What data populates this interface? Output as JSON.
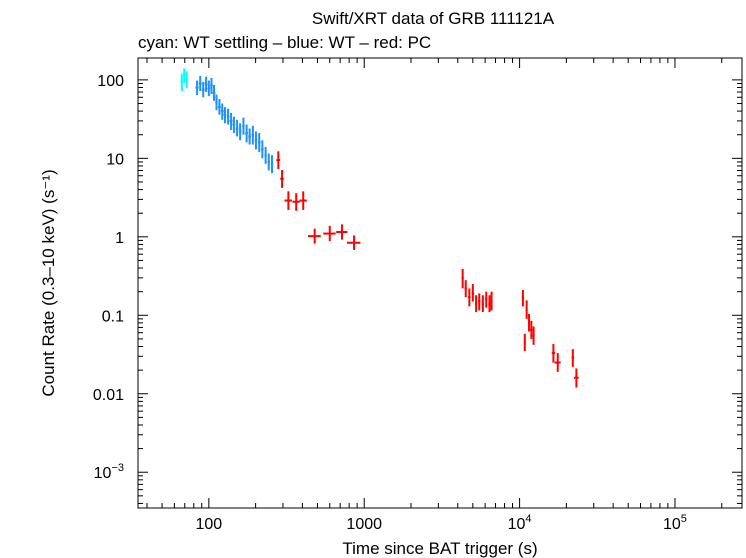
{
  "chart_data": {
    "type": "scatter",
    "title": "Swift/XRT data of GRB 111121A",
    "subtitle": "cyan: WT settling – blue: WT – red: PC",
    "xlabel": "Time since BAT trigger (s)",
    "ylabel": "Count Rate (0.3–10 keV) (s⁻¹)",
    "xscale": "log",
    "yscale": "log",
    "xlim": [
      35,
      270000
    ],
    "ylim": [
      0.00035,
      190
    ],
    "x_ticks": [
      {
        "value": 100,
        "label": "100"
      },
      {
        "value": 1000,
        "label": "1000"
      },
      {
        "value": 10000,
        "base": "10",
        "exp": "4"
      },
      {
        "value": 100000,
        "base": "10",
        "exp": "5"
      }
    ],
    "y_ticks": [
      {
        "value": 100,
        "label": "100"
      },
      {
        "value": 10,
        "label": "10"
      },
      {
        "value": 1,
        "label": "1"
      },
      {
        "value": 0.1,
        "label": "0.1"
      },
      {
        "value": 0.01,
        "label": "0.01"
      },
      {
        "value": 0.001,
        "base": "10",
        "exp": "−3"
      }
    ],
    "colors": {
      "wt_settling": "#00ffff",
      "wt": "#1e90ff",
      "pc": "#ff0000"
    },
    "series": [
      {
        "name": "WT settling",
        "color": "#00ffff",
        "points": [
          {
            "x": 67,
            "y": 95,
            "xerr": 1.2,
            "ylo": 72,
            "yhi": 120
          },
          {
            "x": 69.5,
            "y": 115,
            "xerr": 1.2,
            "ylo": 90,
            "yhi": 140
          },
          {
            "x": 72,
            "y": 100,
            "xerr": 1.2,
            "ylo": 78,
            "yhi": 128
          }
        ]
      },
      {
        "name": "WT",
        "color": "#1e90ff",
        "points": [
          {
            "x": 84,
            "y": 80,
            "xerr": 2,
            "ylo": 64,
            "yhi": 98
          },
          {
            "x": 88,
            "y": 90,
            "xerr": 2,
            "ylo": 72,
            "yhi": 112
          },
          {
            "x": 92,
            "y": 75,
            "xerr": 2,
            "ylo": 60,
            "yhi": 94
          },
          {
            "x": 96,
            "y": 88,
            "xerr": 2,
            "ylo": 70,
            "yhi": 110
          },
          {
            "x": 100,
            "y": 78,
            "xerr": 2,
            "ylo": 62,
            "yhi": 98
          },
          {
            "x": 104,
            "y": 85,
            "xerr": 2,
            "ylo": 66,
            "yhi": 106
          },
          {
            "x": 108,
            "y": 68,
            "xerr": 2,
            "ylo": 54,
            "yhi": 86
          },
          {
            "x": 112,
            "y": 52,
            "xerr": 2,
            "ylo": 41,
            "yhi": 65
          },
          {
            "x": 117,
            "y": 45,
            "xerr": 2.5,
            "ylo": 36,
            "yhi": 57
          },
          {
            "x": 122,
            "y": 40,
            "xerr": 2.5,
            "ylo": 31,
            "yhi": 50
          },
          {
            "x": 127,
            "y": 36,
            "xerr": 2.5,
            "ylo": 28,
            "yhi": 45
          },
          {
            "x": 133,
            "y": 34,
            "xerr": 2.5,
            "ylo": 27,
            "yhi": 43
          },
          {
            "x": 139,
            "y": 30,
            "xerr": 3,
            "ylo": 23,
            "yhi": 38
          },
          {
            "x": 145,
            "y": 27,
            "xerr": 3,
            "ylo": 21,
            "yhi": 34
          },
          {
            "x": 152,
            "y": 24,
            "xerr": 3,
            "ylo": 19,
            "yhi": 31
          },
          {
            "x": 159,
            "y": 22,
            "xerr": 3,
            "ylo": 17,
            "yhi": 28
          },
          {
            "x": 167,
            "y": 26,
            "xerr": 3,
            "ylo": 20,
            "yhi": 33
          },
          {
            "x": 175,
            "y": 21,
            "xerr": 3.5,
            "ylo": 16,
            "yhi": 27
          },
          {
            "x": 183,
            "y": 19,
            "xerr": 3.5,
            "ylo": 15,
            "yhi": 24
          },
          {
            "x": 192,
            "y": 20,
            "xerr": 3.5,
            "ylo": 15,
            "yhi": 26
          },
          {
            "x": 201,
            "y": 17,
            "xerr": 3.5,
            "ylo": 13,
            "yhi": 22
          },
          {
            "x": 211,
            "y": 16,
            "xerr": 4,
            "ylo": 12,
            "yhi": 21
          },
          {
            "x": 221,
            "y": 13,
            "xerr": 4,
            "ylo": 10,
            "yhi": 17
          },
          {
            "x": 232,
            "y": 11,
            "xerr": 4,
            "ylo": 8.5,
            "yhi": 14
          },
          {
            "x": 243,
            "y": 9,
            "xerr": 4,
            "ylo": 7,
            "yhi": 11.5
          },
          {
            "x": 255,
            "y": 8.5,
            "xerr": 4.5,
            "ylo": 6.5,
            "yhi": 11
          }
        ]
      },
      {
        "name": "PC",
        "color": "#ff0000",
        "points": [
          {
            "x": 280,
            "y": 9.5,
            "xerr": 8,
            "ylo": 7.3,
            "yhi": 12.3
          },
          {
            "x": 296,
            "y": 5.5,
            "xerr": 8,
            "ylo": 4.2,
            "yhi": 7.1
          },
          {
            "x": 325,
            "y": 2.9,
            "xerr": 18,
            "ylo": 2.2,
            "yhi": 3.8
          },
          {
            "x": 365,
            "y": 2.8,
            "xerr": 20,
            "ylo": 2.15,
            "yhi": 3.6
          },
          {
            "x": 405,
            "y": 2.9,
            "xerr": 22,
            "ylo": 2.2,
            "yhi": 3.8
          },
          {
            "x": 480,
            "y": 1.02,
            "xerr": 45,
            "ylo": 0.82,
            "yhi": 1.27
          },
          {
            "x": 600,
            "y": 1.1,
            "xerr": 55,
            "ylo": 0.88,
            "yhi": 1.38
          },
          {
            "x": 720,
            "y": 1.15,
            "xerr": 60,
            "ylo": 0.92,
            "yhi": 1.44
          },
          {
            "x": 860,
            "y": 0.84,
            "xerr": 85,
            "ylo": 0.68,
            "yhi": 1.04
          },
          {
            "x": 4300,
            "y": 0.3,
            "xerr": 70,
            "ylo": 0.22,
            "yhi": 0.39
          },
          {
            "x": 4500,
            "y": 0.22,
            "xerr": 80,
            "ylo": 0.17,
            "yhi": 0.28
          },
          {
            "x": 4750,
            "y": 0.17,
            "xerr": 90,
            "ylo": 0.13,
            "yhi": 0.22
          },
          {
            "x": 5000,
            "y": 0.19,
            "xerr": 90,
            "ylo": 0.15,
            "yhi": 0.25
          },
          {
            "x": 5250,
            "y": 0.14,
            "xerr": 90,
            "ylo": 0.11,
            "yhi": 0.18
          },
          {
            "x": 5500,
            "y": 0.15,
            "xerr": 90,
            "ylo": 0.115,
            "yhi": 0.19
          },
          {
            "x": 5800,
            "y": 0.14,
            "xerr": 100,
            "ylo": 0.11,
            "yhi": 0.18
          },
          {
            "x": 6100,
            "y": 0.16,
            "xerr": 100,
            "ylo": 0.125,
            "yhi": 0.2
          },
          {
            "x": 6400,
            "y": 0.14,
            "xerr": 110,
            "ylo": 0.11,
            "yhi": 0.18
          },
          {
            "x": 6600,
            "y": 0.15,
            "xerr": 90,
            "ylo": 0.115,
            "yhi": 0.2
          },
          {
            "x": 10500,
            "y": 0.17,
            "xerr": 150,
            "ylo": 0.13,
            "yhi": 0.21
          },
          {
            "x": 10800,
            "y": 0.045,
            "xerr": 150,
            "ylo": 0.035,
            "yhi": 0.058
          },
          {
            "x": 11100,
            "y": 0.12,
            "xerr": 150,
            "ylo": 0.09,
            "yhi": 0.155
          },
          {
            "x": 11500,
            "y": 0.08,
            "xerr": 180,
            "ylo": 0.062,
            "yhi": 0.104
          },
          {
            "x": 11900,
            "y": 0.065,
            "xerr": 200,
            "ylo": 0.05,
            "yhi": 0.085
          },
          {
            "x": 12300,
            "y": 0.055,
            "xerr": 200,
            "ylo": 0.042,
            "yhi": 0.072
          },
          {
            "x": 16500,
            "y": 0.033,
            "xerr": 400,
            "ylo": 0.025,
            "yhi": 0.043
          },
          {
            "x": 17600,
            "y": 0.025,
            "xerr": 800,
            "ylo": 0.019,
            "yhi": 0.033
          },
          {
            "x": 22000,
            "y": 0.029,
            "xerr": 400,
            "ylo": 0.022,
            "yhi": 0.037
          },
          {
            "x": 23200,
            "y": 0.016,
            "xerr": 800,
            "ylo": 0.012,
            "yhi": 0.021
          }
        ]
      }
    ]
  }
}
